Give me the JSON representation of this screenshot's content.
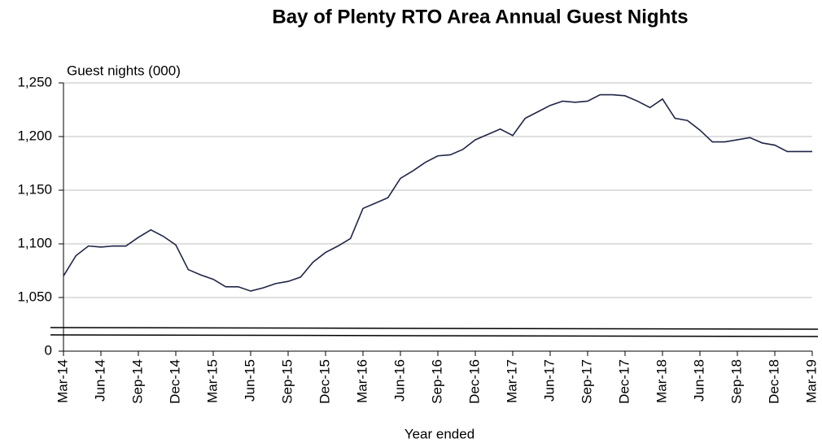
{
  "chart_data": {
    "type": "line",
    "title": "Bay of Plenty RTO Area Annual  Guest Nights",
    "y_label": "Guest nights (000)",
    "x_label": "Year ended",
    "categories": [
      "Mar-14",
      null,
      null,
      "Jun-14",
      null,
      null,
      "Sep-14",
      null,
      null,
      "Dec-14",
      null,
      null,
      "Mar-15",
      null,
      null,
      "Jun-15",
      null,
      null,
      "Sep-15",
      null,
      null,
      "Dec-15",
      null,
      null,
      "Mar-16",
      null,
      null,
      "Jun-16",
      null,
      null,
      "Sep-16",
      null,
      null,
      "Dec-16",
      null,
      null,
      "Mar-17",
      null,
      null,
      "Jun-17",
      null,
      null,
      "Sep-17",
      null,
      null,
      "Dec-17",
      null,
      null,
      "Mar-18",
      null,
      null,
      "Jun-18",
      null,
      null,
      "Sep-18",
      null,
      null,
      "Dec-18",
      null,
      null,
      "Mar-19"
    ],
    "series": [
      {
        "name": "Guest nights",
        "color": "#1f2546",
        "values": [
          1070,
          1089,
          1098,
          1097,
          1098,
          1098,
          1106,
          1113,
          1107,
          1099,
          1076,
          1071,
          1067,
          1060,
          1060,
          1056,
          1059,
          1063,
          1065,
          1069,
          1083,
          1092,
          1098,
          1105,
          1133,
          1138,
          1143,
          1161,
          1168,
          1176,
          1182,
          1183,
          1188,
          1197,
          1202,
          1207,
          1201,
          1217,
          1223,
          1229,
          1233,
          1232,
          1233,
          1239,
          1239,
          1238,
          1233,
          1227,
          1235,
          1217,
          1215,
          1206,
          1195,
          1195,
          1197,
          1199,
          1194,
          1192,
          1186,
          1186,
          1186
        ]
      }
    ],
    "ylim": [
      0,
      1250
    ],
    "yticks": [
      0,
      {
        "value": 1050,
        "label": "1,050"
      },
      {
        "value": 1100,
        "label": "1,100"
      },
      {
        "value": 1150,
        "label": "1,150"
      },
      {
        "value": 1200,
        "label": "1,200"
      },
      {
        "value": 1250,
        "label": "1,250"
      }
    ],
    "axis_break": true,
    "grid": true
  }
}
